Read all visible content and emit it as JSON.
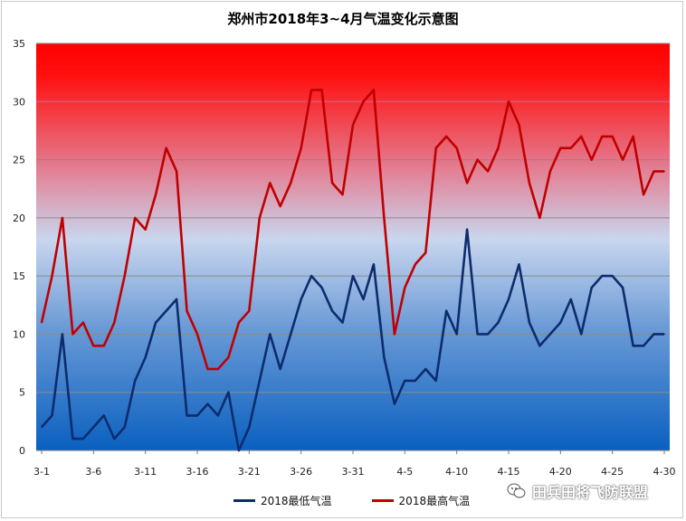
{
  "page": {
    "title": "郑州市2018年3~4月气温变化示意图"
  },
  "watermark": {
    "text": "田兵田将飞防联盟",
    "icon": "wechat-icon"
  },
  "colors": {
    "low_series": "#0d2c6e",
    "high_series": "#c00000",
    "bg_top": "#ff0000",
    "bg_mid": "#c9d6ee",
    "bg_bottom": "#0a60c0"
  },
  "chart_data": {
    "type": "line",
    "title": "郑州市2018年3~4月气温变化示意图",
    "xlabel": "",
    "ylabel": "",
    "ylim": [
      0,
      35
    ],
    "yticks": [
      "0",
      "5",
      "10",
      "15",
      "20",
      "25",
      "30",
      "35"
    ],
    "xticks": [
      "3-1",
      "3-6",
      "3-11",
      "3-16",
      "3-21",
      "3-26",
      "3-31",
      "4-5",
      "4-10",
      "4-15",
      "4-20",
      "4-25",
      "4-30"
    ],
    "x": [
      "3-1",
      "3-2",
      "3-3",
      "3-4",
      "3-5",
      "3-6",
      "3-7",
      "3-8",
      "3-9",
      "3-10",
      "3-11",
      "3-12",
      "3-13",
      "3-14",
      "3-15",
      "3-16",
      "3-17",
      "3-18",
      "3-19",
      "3-20",
      "3-21",
      "3-22",
      "3-23",
      "3-24",
      "3-25",
      "3-26",
      "3-27",
      "3-28",
      "3-29",
      "3-30",
      "3-31",
      "4-1",
      "4-2",
      "4-3",
      "4-4",
      "4-5",
      "4-6",
      "4-7",
      "4-8",
      "4-9",
      "4-10",
      "4-11",
      "4-12",
      "4-13",
      "4-14",
      "4-15",
      "4-16",
      "4-17",
      "4-18",
      "4-19",
      "4-20",
      "4-21",
      "4-22",
      "4-23",
      "4-24",
      "4-25",
      "4-26",
      "4-27",
      "4-28",
      "4-29",
      "4-30"
    ],
    "grid": true,
    "legend_position": "bottom",
    "series": [
      {
        "name": "2018最低气温",
        "color": "#0d2c6e",
        "values": [
          2,
          3,
          10,
          1,
          1,
          2,
          3,
          1,
          2,
          6,
          8,
          11,
          12,
          13,
          3,
          3,
          4,
          3,
          5,
          0,
          2,
          6,
          10,
          7,
          10,
          13,
          15,
          14,
          12,
          11,
          15,
          13,
          16,
          8,
          4,
          6,
          6,
          7,
          6,
          12,
          10,
          19,
          10,
          10,
          11,
          13,
          16,
          11,
          9,
          10,
          11,
          13,
          10,
          14,
          15,
          15,
          14,
          9,
          9,
          10,
          10
        ]
      },
      {
        "name": "2018最高气温",
        "color": "#c00000",
        "values": [
          11,
          15,
          20,
          10,
          11,
          9,
          9,
          11,
          15,
          20,
          19,
          22,
          26,
          24,
          12,
          10,
          7,
          7,
          8,
          11,
          12,
          20,
          23,
          21,
          23,
          26,
          31,
          31,
          23,
          22,
          28,
          30,
          31,
          20,
          10,
          14,
          16,
          17,
          26,
          27,
          26,
          23,
          25,
          24,
          26,
          30,
          28,
          23,
          20,
          24,
          26,
          26,
          27,
          25,
          27,
          27,
          25,
          27,
          22,
          24,
          24
        ]
      }
    ]
  }
}
